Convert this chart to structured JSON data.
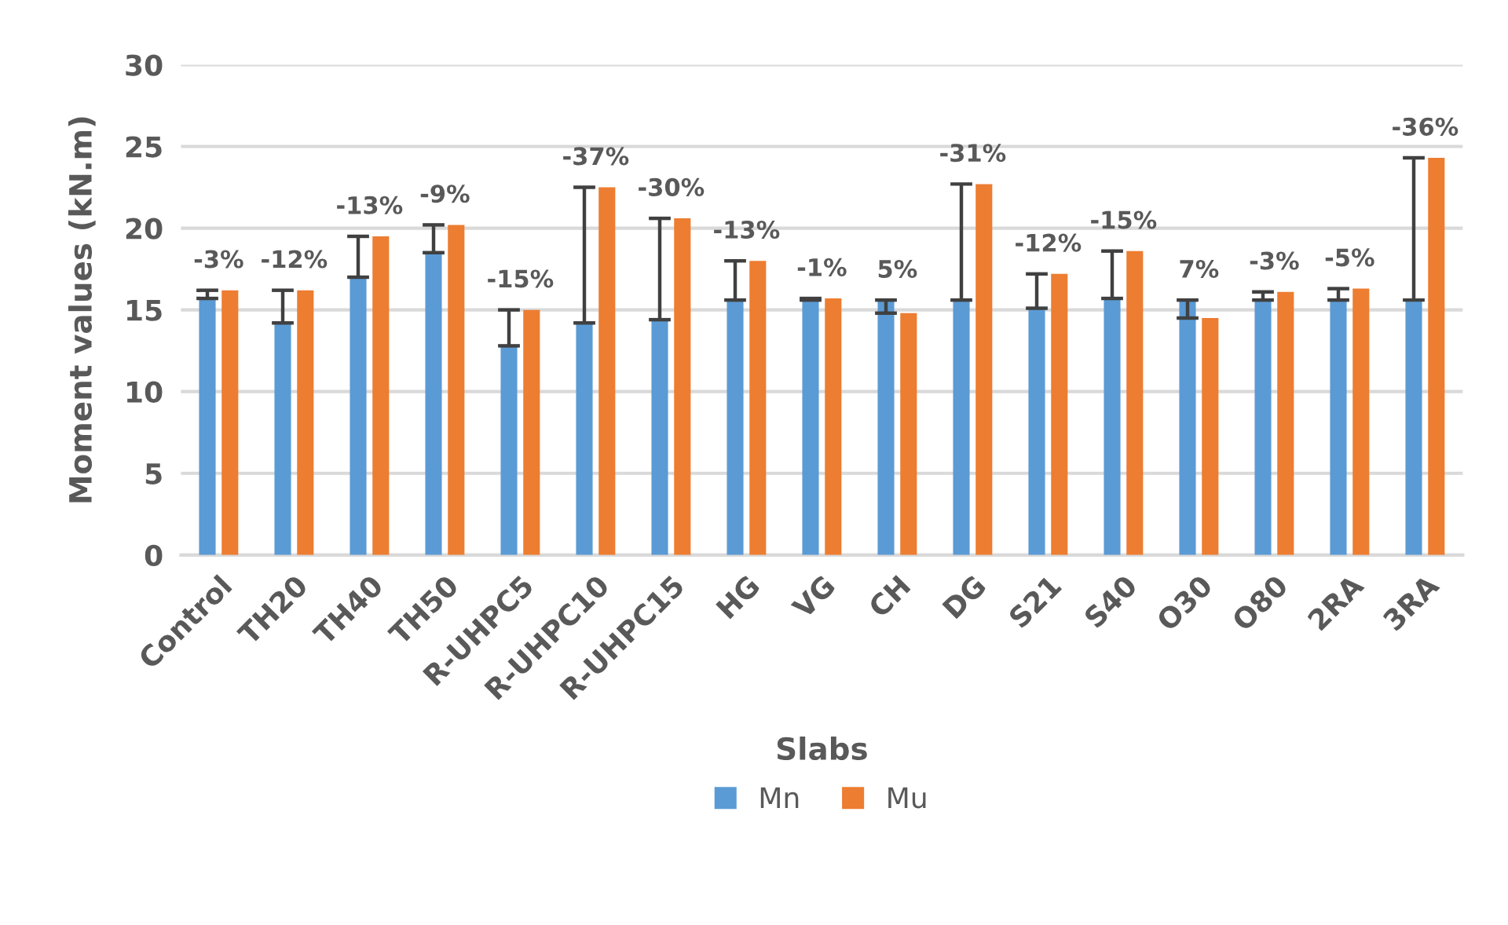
{
  "chart_data": {
    "type": "bar",
    "xlabel": "Slabs",
    "ylabel": "Moment values (kN.m)",
    "categories": [
      "Control",
      "TH20",
      "TH40",
      "TH50",
      "R-UHPC5",
      "R-UHPC10",
      "R-UHPC15",
      "HG",
      "VG",
      "CH",
      "DG",
      "S21",
      "S40",
      "O30",
      "O80",
      "2RA",
      "3RA"
    ],
    "series": [
      {
        "name": "Mn",
        "color": "#5b9bd5",
        "values": [
          15.7,
          14.2,
          17.0,
          18.5,
          12.8,
          14.2,
          14.4,
          15.6,
          15.6,
          15.6,
          15.6,
          15.1,
          15.7,
          15.6,
          15.6,
          15.6,
          15.6
        ],
        "errors": [
          [
            15.7,
            16.2
          ],
          [
            14.2,
            16.2
          ],
          [
            17.0,
            19.5
          ],
          [
            18.5,
            20.2
          ],
          [
            12.8,
            15.0
          ],
          [
            14.2,
            22.5
          ],
          [
            14.4,
            20.6
          ],
          [
            15.6,
            18.0
          ],
          [
            15.6,
            15.7
          ],
          [
            14.8,
            15.6
          ],
          [
            15.6,
            22.7
          ],
          [
            15.1,
            17.2
          ],
          [
            15.7,
            18.6
          ],
          [
            14.5,
            15.6
          ],
          [
            15.6,
            16.1
          ],
          [
            15.6,
            16.3
          ],
          [
            15.6,
            24.3
          ]
        ]
      },
      {
        "name": "Mu",
        "color": "#ed7d31",
        "values": [
          16.2,
          16.2,
          19.5,
          20.2,
          15.0,
          22.5,
          20.6,
          18.0,
          15.7,
          14.8,
          22.7,
          17.2,
          18.6,
          14.5,
          16.1,
          16.3,
          24.3
        ]
      }
    ],
    "annotations": [
      {
        "text": "-3%",
        "x": "Control",
        "y": 16.2
      },
      {
        "text": "-12%",
        "x": "TH20",
        "y": 16.2
      },
      {
        "text": "-13%",
        "x": "TH40",
        "y": 19.5
      },
      {
        "text": "-9%",
        "x": "TH50",
        "y": 20.2
      },
      {
        "text": "-15%",
        "x": "R-UHPC5",
        "y": 15.0
      },
      {
        "text": "-37%",
        "x": "R-UHPC10",
        "y": 22.5
      },
      {
        "text": "-30%",
        "x": "R-UHPC15",
        "y": 20.6
      },
      {
        "text": "-13%",
        "x": "HG",
        "y": 18.0
      },
      {
        "text": "-1%",
        "x": "VG",
        "y": 15.7
      },
      {
        "text": "5%",
        "x": "CH",
        "y": 15.6
      },
      {
        "text": "-31%",
        "x": "DG",
        "y": 22.7
      },
      {
        "text": "-12%",
        "x": "S21",
        "y": 17.2
      },
      {
        "text": "-15%",
        "x": "S40",
        "y": 18.6
      },
      {
        "text": "7%",
        "x": "O30",
        "y": 15.6
      },
      {
        "text": "-3%",
        "x": "O80",
        "y": 16.1
      },
      {
        "text": "-5%",
        "x": "2RA",
        "y": 16.3
      },
      {
        "text": "-36%",
        "x": "3RA",
        "y": 24.3
      }
    ],
    "ylim": [
      0,
      30
    ],
    "yticks": [
      0,
      5,
      10,
      15,
      20,
      25,
      30
    ],
    "grid": "y",
    "legend": "bottom"
  }
}
